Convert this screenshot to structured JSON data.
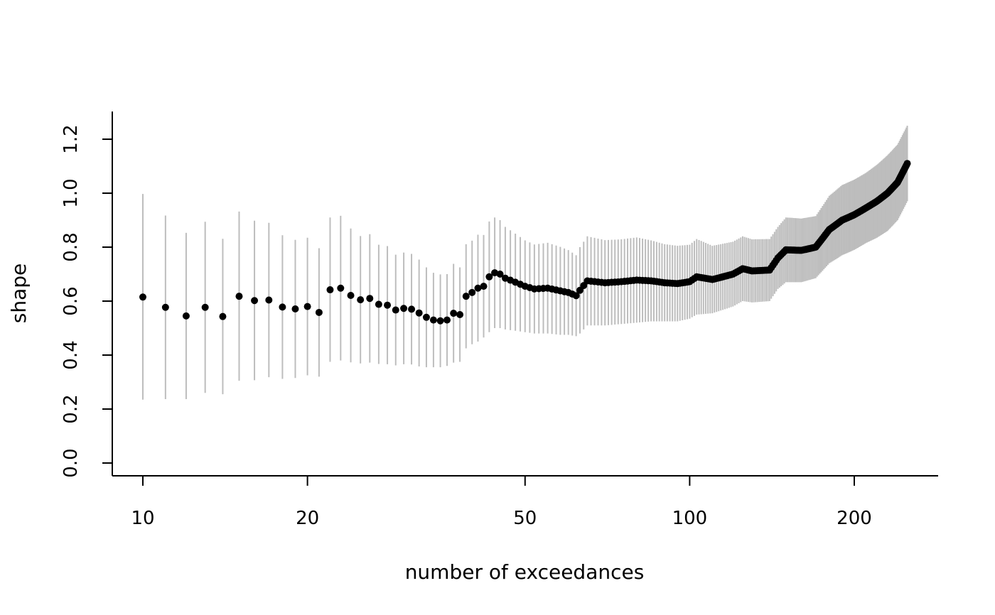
{
  "chart_data": {
    "type": "scatter",
    "title": "",
    "xlabel": "number of exceedances",
    "ylabel": "shape",
    "x_scale": "log",
    "xlim": [
      9,
      300
    ],
    "ylim": [
      -0.05,
      1.3
    ],
    "x_ticks": [
      10,
      20,
      50,
      100,
      200
    ],
    "x_tick_labels": [
      "10",
      "20",
      "50",
      "100",
      "200"
    ],
    "y_ticks": [
      0,
      0.2,
      0.4,
      0.6,
      0.8,
      1,
      1.2
    ],
    "y_tick_labels": [
      "0.0",
      "0.2",
      "0.4",
      "0.6",
      "0.8",
      "1.0",
      "1.2"
    ],
    "grid": false,
    "legend": "none",
    "colors": {
      "points": "#000000",
      "intervals": "#bdbdbd"
    },
    "anchors": {
      "x": [
        10,
        11,
        12,
        13,
        14,
        15,
        16,
        17,
        18,
        19,
        20,
        21,
        22,
        23,
        24,
        25,
        26,
        27,
        28,
        29,
        30,
        31,
        32,
        33,
        34,
        35,
        36,
        37,
        38,
        39,
        40,
        41,
        42,
        43,
        44,
        45,
        46,
        48,
        50,
        52,
        55,
        58,
        60,
        62,
        63,
        65,
        70,
        75,
        80,
        85,
        90,
        95,
        100,
        103,
        110,
        120,
        125,
        130,
        140,
        145,
        150,
        160,
        170,
        180,
        190,
        200,
        210,
        220,
        230,
        240,
        250
      ],
      "y": [
        0.615,
        0.577,
        0.545,
        0.577,
        0.543,
        0.618,
        0.602,
        0.604,
        0.578,
        0.571,
        0.58,
        0.558,
        0.642,
        0.648,
        0.621,
        0.605,
        0.61,
        0.588,
        0.585,
        0.567,
        0.573,
        0.57,
        0.556,
        0.54,
        0.53,
        0.527,
        0.53,
        0.555,
        0.55,
        0.618,
        0.632,
        0.648,
        0.655,
        0.69,
        0.705,
        0.7,
        0.685,
        0.67,
        0.655,
        0.645,
        0.648,
        0.638,
        0.632,
        0.62,
        0.64,
        0.675,
        0.668,
        0.672,
        0.678,
        0.675,
        0.668,
        0.665,
        0.672,
        0.69,
        0.68,
        0.7,
        0.72,
        0.712,
        0.715,
        0.76,
        0.79,
        0.788,
        0.8,
        0.865,
        0.9,
        0.92,
        0.945,
        0.97,
        1.0,
        1.04,
        1.11
      ],
      "lower": [
        0.235,
        0.237,
        0.237,
        0.26,
        0.255,
        0.305,
        0.307,
        0.318,
        0.312,
        0.315,
        0.325,
        0.32,
        0.375,
        0.38,
        0.373,
        0.369,
        0.372,
        0.367,
        0.366,
        0.362,
        0.366,
        0.365,
        0.358,
        0.355,
        0.355,
        0.355,
        0.36,
        0.372,
        0.375,
        0.425,
        0.44,
        0.45,
        0.465,
        0.485,
        0.5,
        0.5,
        0.495,
        0.49,
        0.485,
        0.48,
        0.48,
        0.475,
        0.475,
        0.47,
        0.48,
        0.51,
        0.51,
        0.515,
        0.52,
        0.525,
        0.525,
        0.525,
        0.535,
        0.55,
        0.555,
        0.58,
        0.6,
        0.595,
        0.6,
        0.645,
        0.67,
        0.67,
        0.685,
        0.74,
        0.77,
        0.79,
        0.815,
        0.835,
        0.86,
        0.9,
        0.97
      ],
      "upper": [
        0.997,
        0.917,
        0.853,
        0.894,
        0.831,
        0.932,
        0.898,
        0.89,
        0.844,
        0.827,
        0.835,
        0.796,
        0.91,
        0.916,
        0.869,
        0.841,
        0.848,
        0.809,
        0.804,
        0.772,
        0.78,
        0.775,
        0.754,
        0.725,
        0.705,
        0.699,
        0.7,
        0.738,
        0.725,
        0.811,
        0.824,
        0.846,
        0.845,
        0.895,
        0.91,
        0.9,
        0.875,
        0.85,
        0.825,
        0.81,
        0.816,
        0.801,
        0.789,
        0.77,
        0.8,
        0.84,
        0.826,
        0.829,
        0.836,
        0.825,
        0.811,
        0.805,
        0.809,
        0.83,
        0.805,
        0.82,
        0.84,
        0.829,
        0.83,
        0.875,
        0.91,
        0.906,
        0.915,
        0.99,
        1.03,
        1.05,
        1.075,
        1.105,
        1.14,
        1.18,
        1.25
      ]
    }
  }
}
